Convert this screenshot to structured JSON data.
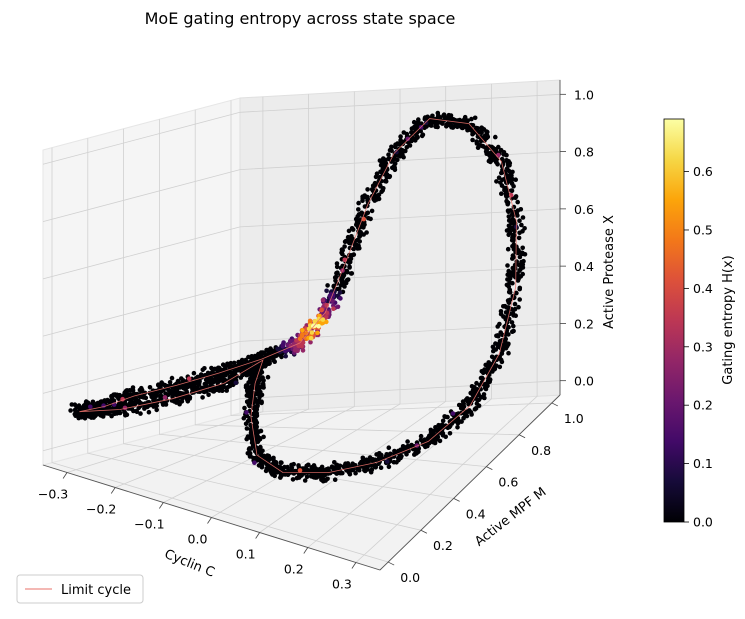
{
  "chart_data": {
    "type": "scatter",
    "projection": "3d",
    "title": "MoE gating entropy across state space",
    "xlabel": "Cyclin C",
    "ylabel": "Active MPF M",
    "zlabel": "Active Protease X",
    "xlim": [
      -0.35,
      0.35
    ],
    "ylim": [
      -0.05,
      1.05
    ],
    "zlim": [
      -0.05,
      1.05
    ],
    "xticks": [
      "−0.3",
      "−0.2",
      "−0.1",
      "0.0",
      "0.1",
      "0.2",
      "0.3"
    ],
    "xtick_values": [
      -0.3,
      -0.2,
      -0.1,
      0.0,
      0.1,
      0.2,
      0.3
    ],
    "yticks": [
      "0.0",
      "0.2",
      "0.4",
      "0.6",
      "0.8",
      "1.0"
    ],
    "ytick_values": [
      0.0,
      0.2,
      0.4,
      0.6,
      0.8,
      1.0
    ],
    "zticks": [
      "0.0",
      "0.2",
      "0.4",
      "0.6",
      "0.8",
      "1.0"
    ],
    "ztick_values": [
      0.0,
      0.2,
      0.4,
      0.6,
      0.8,
      1.0
    ],
    "colorbar": {
      "label": "Gating entropy H(x)",
      "colormap": "inferno",
      "range": [
        0.0,
        0.69
      ],
      "ticks": [
        "0.0",
        "0.1",
        "0.2",
        "0.3",
        "0.4",
        "0.5",
        "0.6"
      ],
      "tick_values": [
        0.0,
        0.1,
        0.2,
        0.3,
        0.4,
        0.5,
        0.6
      ]
    },
    "legend": {
      "position": "lower-left",
      "entries": [
        {
          "label": "Limit cycle",
          "color": "#e8706a"
        }
      ]
    },
    "limit_cycle_path_xyz": [
      [
        -0.33,
        0.1,
        0.12
      ],
      [
        -0.3,
        0.16,
        0.14
      ],
      [
        -0.26,
        0.22,
        0.18
      ],
      [
        -0.2,
        0.3,
        0.22
      ],
      [
        -0.14,
        0.38,
        0.26
      ],
      [
        -0.08,
        0.46,
        0.3
      ],
      [
        -0.02,
        0.52,
        0.35
      ],
      [
        0.02,
        0.56,
        0.45
      ],
      [
        0.04,
        0.62,
        0.6
      ],
      [
        0.06,
        0.7,
        0.78
      ],
      [
        0.08,
        0.8,
        0.92
      ],
      [
        0.12,
        0.9,
        1.0
      ],
      [
        0.18,
        0.97,
        0.95
      ],
      [
        0.24,
        1.0,
        0.8
      ],
      [
        0.28,
        0.98,
        0.6
      ],
      [
        0.3,
        0.92,
        0.4
      ],
      [
        0.3,
        0.82,
        0.22
      ],
      [
        0.28,
        0.7,
        0.1
      ],
      [
        0.24,
        0.56,
        0.04
      ],
      [
        0.18,
        0.42,
        0.02
      ],
      [
        0.12,
        0.3,
        0.02
      ],
      [
        0.06,
        0.2,
        0.04
      ],
      [
        0.02,
        0.16,
        0.1
      ],
      [
        0.0,
        0.18,
        0.22
      ],
      [
        -0.02,
        0.26,
        0.3
      ],
      [
        -0.04,
        0.36,
        0.34
      ],
      [
        -0.1,
        0.3,
        0.26
      ],
      [
        -0.18,
        0.22,
        0.2
      ],
      [
        -0.26,
        0.14,
        0.15
      ],
      [
        -0.33,
        0.1,
        0.12
      ]
    ],
    "high_entropy_region": {
      "center_xyz": [
        0.01,
        0.54,
        0.4
      ],
      "entropy_max": 0.69
    },
    "n_points_approx": 2600,
    "marker_color_low": "#000004"
  }
}
